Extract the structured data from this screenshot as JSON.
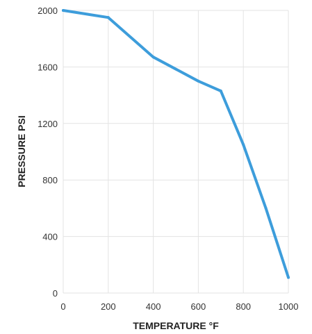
{
  "chart_data": {
    "type": "line",
    "title": "",
    "xlabel": "TEMPERATURE °F",
    "ylabel": "PRESSURE PSI",
    "xlim": [
      0,
      1000
    ],
    "ylim": [
      0,
      2000
    ],
    "xticks": [
      0,
      200,
      400,
      600,
      800,
      1000
    ],
    "yticks": [
      0,
      400,
      800,
      1200,
      1600,
      2000
    ],
    "xtick_labels": [
      "0",
      "200",
      "400",
      "600",
      "800",
      "1000"
    ],
    "ytick_labels": [
      "0",
      "400",
      "800",
      "1200",
      "1600",
      "2000"
    ],
    "grid": true,
    "series": [
      {
        "color": "#3d9ddb",
        "x": [
          0,
          200,
          400,
          600,
          700,
          800,
          900,
          1000
        ],
        "y": [
          2000,
          1950,
          1670,
          1500,
          1430,
          1050,
          600,
          110
        ]
      }
    ]
  }
}
